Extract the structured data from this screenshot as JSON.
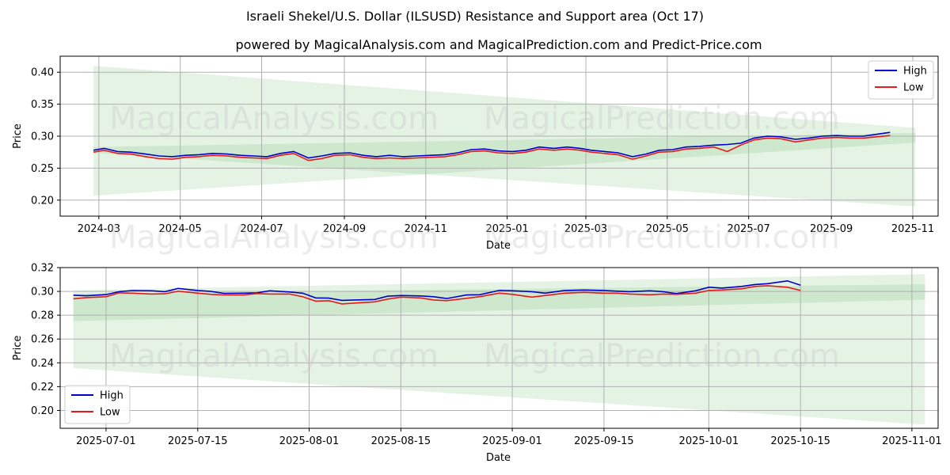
{
  "title": "Israeli Shekel/U.S. Dollar (ILSUSD) Resistance and Support area (Oct 17)",
  "subtitle": "powered by MagicalAnalysis.com and MagicalPrediction.com and Predict-Price.com",
  "watermarks": [
    "MagicalAnalysis.com",
    "MagicalPrediction.com"
  ],
  "colors": {
    "high": "#0000cc",
    "low": "#e41a1c",
    "band": "#2ca02c",
    "grid": "#b0b0b0"
  },
  "chart_data": [
    {
      "type": "line",
      "xlabel": "Date",
      "ylabel": "Price",
      "ylim": [
        0.175,
        0.425
      ],
      "xlim": [
        "2024-02-01",
        "2025-11-20"
      ],
      "yticks": [
        0.2,
        0.25,
        0.3,
        0.35,
        0.4
      ],
      "ytick_labels": [
        "0.20",
        "0.25",
        "0.30",
        "0.35",
        "0.40"
      ],
      "xticks": [
        "2024-03-01",
        "2024-05-01",
        "2024-07-01",
        "2024-09-01",
        "2024-11-01",
        "2025-01-01",
        "2025-03-01",
        "2025-05-01",
        "2025-07-01",
        "2025-09-01",
        "2025-11-01"
      ],
      "xtick_labels": [
        "2024-03",
        "2024-05",
        "2024-07",
        "2024-09",
        "2024-11",
        "2025-01",
        "2025-03",
        "2025-05",
        "2025-07",
        "2025-09",
        "2025-11"
      ],
      "legend": {
        "position": "upper-right",
        "entries": [
          "High",
          "Low"
        ]
      },
      "grid": true,
      "bands": [
        {
          "x": [
            "2024-02-26",
            "2025-11-03"
          ],
          "upper": [
            0.41,
            0.313
          ],
          "lower": [
            0.207,
            0.29
          ]
        },
        {
          "x": [
            "2024-02-26",
            "2025-11-03"
          ],
          "upper": [
            0.283,
            0.305
          ],
          "lower": [
            0.274,
            0.19
          ]
        }
      ],
      "series": [
        {
          "name": "High",
          "x": [
            "2024-02-26",
            "2024-03-05",
            "2024-03-15",
            "2024-03-25",
            "2024-04-05",
            "2024-04-15",
            "2024-04-25",
            "2024-05-05",
            "2024-05-15",
            "2024-05-25",
            "2024-06-05",
            "2024-06-15",
            "2024-06-25",
            "2024-07-05",
            "2024-07-15",
            "2024-07-25",
            "2024-08-05",
            "2024-08-15",
            "2024-08-25",
            "2024-09-05",
            "2024-09-15",
            "2024-09-25",
            "2024-10-05",
            "2024-10-15",
            "2024-10-25",
            "2024-11-05",
            "2024-11-15",
            "2024-11-25",
            "2024-12-05",
            "2024-12-15",
            "2024-12-25",
            "2025-01-05",
            "2025-01-15",
            "2025-01-25",
            "2025-02-05",
            "2025-02-15",
            "2025-02-25",
            "2025-03-05",
            "2025-03-15",
            "2025-03-25",
            "2025-04-05",
            "2025-04-15",
            "2025-04-25",
            "2025-05-05",
            "2025-05-15",
            "2025-05-25",
            "2025-06-05",
            "2025-06-15",
            "2025-06-25",
            "2025-07-05",
            "2025-07-15",
            "2025-07-25",
            "2025-08-05",
            "2025-08-15",
            "2025-08-25",
            "2025-09-05",
            "2025-09-15",
            "2025-09-25",
            "2025-10-05",
            "2025-10-15"
          ],
          "y": [
            0.278,
            0.281,
            0.276,
            0.275,
            0.272,
            0.269,
            0.268,
            0.27,
            0.271,
            0.273,
            0.272,
            0.27,
            0.269,
            0.268,
            0.273,
            0.276,
            0.266,
            0.269,
            0.273,
            0.274,
            0.27,
            0.268,
            0.27,
            0.268,
            0.269,
            0.27,
            0.271,
            0.274,
            0.279,
            0.28,
            0.277,
            0.276,
            0.278,
            0.283,
            0.281,
            0.283,
            0.281,
            0.278,
            0.276,
            0.274,
            0.268,
            0.272,
            0.278,
            0.279,
            0.283,
            0.284,
            0.286,
            0.287,
            0.289,
            0.297,
            0.3,
            0.299,
            0.295,
            0.297,
            0.3,
            0.301,
            0.3,
            0.3,
            0.303,
            0.306
          ]
        },
        {
          "name": "Low",
          "x": [
            "2024-02-26",
            "2024-03-05",
            "2024-03-15",
            "2024-03-25",
            "2024-04-05",
            "2024-04-15",
            "2024-04-25",
            "2024-05-05",
            "2024-05-15",
            "2024-05-25",
            "2024-06-05",
            "2024-06-15",
            "2024-06-25",
            "2024-07-05",
            "2024-07-15",
            "2024-07-25",
            "2024-08-05",
            "2024-08-15",
            "2024-08-25",
            "2024-09-05",
            "2024-09-15",
            "2024-09-25",
            "2024-10-05",
            "2024-10-15",
            "2024-10-25",
            "2024-11-05",
            "2024-11-15",
            "2024-11-25",
            "2024-12-05",
            "2024-12-15",
            "2024-12-25",
            "2025-01-05",
            "2025-01-15",
            "2025-01-25",
            "2025-02-05",
            "2025-02-15",
            "2025-02-25",
            "2025-03-05",
            "2025-03-15",
            "2025-03-25",
            "2025-04-05",
            "2025-04-15",
            "2025-04-25",
            "2025-05-05",
            "2025-05-15",
            "2025-05-25",
            "2025-06-05",
            "2025-06-15",
            "2025-06-25",
            "2025-07-05",
            "2025-07-15",
            "2025-07-25",
            "2025-08-05",
            "2025-08-15",
            "2025-08-25",
            "2025-09-05",
            "2025-09-15",
            "2025-09-25",
            "2025-10-05",
            "2025-10-15"
          ],
          "y": [
            0.275,
            0.278,
            0.273,
            0.272,
            0.268,
            0.265,
            0.264,
            0.267,
            0.268,
            0.27,
            0.269,
            0.267,
            0.266,
            0.265,
            0.27,
            0.273,
            0.262,
            0.265,
            0.27,
            0.271,
            0.267,
            0.265,
            0.266,
            0.265,
            0.266,
            0.267,
            0.268,
            0.271,
            0.276,
            0.277,
            0.274,
            0.273,
            0.275,
            0.28,
            0.278,
            0.28,
            0.278,
            0.275,
            0.273,
            0.271,
            0.264,
            0.269,
            0.275,
            0.276,
            0.28,
            0.281,
            0.283,
            0.276,
            0.286,
            0.294,
            0.297,
            0.296,
            0.291,
            0.294,
            0.297,
            0.298,
            0.297,
            0.297,
            0.299,
            0.301
          ]
        }
      ]
    },
    {
      "type": "line",
      "xlabel": "Date",
      "ylabel": "Price",
      "ylim": [
        0.185,
        0.32
      ],
      "xlim": [
        "2025-06-24",
        "2025-11-05"
      ],
      "yticks": [
        0.2,
        0.22,
        0.24,
        0.26,
        0.28,
        0.3,
        0.32
      ],
      "ytick_labels": [
        "0.20",
        "0.22",
        "0.24",
        "0.26",
        "0.28",
        "0.30",
        "0.32"
      ],
      "xticks": [
        "2025-07-01",
        "2025-07-15",
        "2025-08-01",
        "2025-08-15",
        "2025-09-01",
        "2025-09-15",
        "2025-10-01",
        "2025-10-15",
        "2025-11-01"
      ],
      "xtick_labels": [
        "2025-07-01",
        "2025-07-15",
        "2025-08-01",
        "2025-08-15",
        "2025-09-01",
        "2025-09-15",
        "2025-10-01",
        "2025-10-15",
        "2025-11-01"
      ],
      "legend": {
        "position": "lower-left",
        "entries": [
          "High",
          "Low"
        ]
      },
      "grid": true,
      "bands": [
        {
          "x": [
            "2025-06-26",
            "2025-11-03"
          ],
          "upper": [
            0.301,
            0.3145
          ],
          "lower": [
            0.275,
            0.293
          ]
        },
        {
          "x": [
            "2025-06-26",
            "2025-11-03"
          ],
          "upper": [
            0.298,
            0.306
          ],
          "lower": [
            0.2355,
            0.188
          ]
        }
      ],
      "series": [
        {
          "name": "High",
          "x": [
            "2025-06-26",
            "2025-06-28",
            "2025-07-01",
            "2025-07-03",
            "2025-07-05",
            "2025-07-08",
            "2025-07-10",
            "2025-07-12",
            "2025-07-15",
            "2025-07-17",
            "2025-07-19",
            "2025-07-22",
            "2025-07-24",
            "2025-07-26",
            "2025-07-29",
            "2025-07-31",
            "2025-08-02",
            "2025-08-04",
            "2025-08-06",
            "2025-08-08",
            "2025-08-11",
            "2025-08-13",
            "2025-08-15",
            "2025-08-18",
            "2025-08-20",
            "2025-08-22",
            "2025-08-25",
            "2025-08-27",
            "2025-08-30",
            "2025-09-01",
            "2025-09-04",
            "2025-09-06",
            "2025-09-09",
            "2025-09-12",
            "2025-09-15",
            "2025-09-17",
            "2025-09-19",
            "2025-09-22",
            "2025-09-24",
            "2025-09-26",
            "2025-09-29",
            "2025-10-01",
            "2025-10-03",
            "2025-10-06",
            "2025-10-08",
            "2025-10-10",
            "2025-10-13",
            "2025-10-15"
          ],
          "y": [
            0.2968,
            0.2963,
            0.2973,
            0.2998,
            0.3007,
            0.3005,
            0.2998,
            0.3025,
            0.3008,
            0.3,
            0.2983,
            0.2985,
            0.2988,
            0.3005,
            0.2995,
            0.2985,
            0.2945,
            0.2943,
            0.2925,
            0.2928,
            0.2932,
            0.296,
            0.2965,
            0.2962,
            0.2955,
            0.294,
            0.297,
            0.2972,
            0.3008,
            0.3005,
            0.2998,
            0.2985,
            0.3008,
            0.3012,
            0.3008,
            0.3002,
            0.2998,
            0.3005,
            0.2998,
            0.2982,
            0.3005,
            0.3035,
            0.3028,
            0.3042,
            0.3058,
            0.3065,
            0.3088,
            0.3052
          ]
        },
        {
          "name": "Low",
          "x": [
            "2025-06-26",
            "2025-06-28",
            "2025-07-01",
            "2025-07-03",
            "2025-07-05",
            "2025-07-08",
            "2025-07-10",
            "2025-07-12",
            "2025-07-15",
            "2025-07-17",
            "2025-07-19",
            "2025-07-22",
            "2025-07-24",
            "2025-07-26",
            "2025-07-29",
            "2025-07-31",
            "2025-08-02",
            "2025-08-04",
            "2025-08-06",
            "2025-08-08",
            "2025-08-11",
            "2025-08-13",
            "2025-08-15",
            "2025-08-18",
            "2025-08-20",
            "2025-08-22",
            "2025-08-25",
            "2025-08-27",
            "2025-08-30",
            "2025-09-01",
            "2025-09-04",
            "2025-09-06",
            "2025-09-09",
            "2025-09-12",
            "2025-09-15",
            "2025-09-17",
            "2025-09-19",
            "2025-09-22",
            "2025-09-24",
            "2025-09-26",
            "2025-09-29",
            "2025-10-01",
            "2025-10-03",
            "2025-10-06",
            "2025-10-08",
            "2025-10-10",
            "2025-10-13",
            "2025-10-15"
          ],
          "y": [
            0.2938,
            0.2948,
            0.2955,
            0.2988,
            0.2985,
            0.2978,
            0.298,
            0.3002,
            0.2985,
            0.2975,
            0.297,
            0.297,
            0.2982,
            0.2978,
            0.2978,
            0.2955,
            0.2918,
            0.2922,
            0.2895,
            0.2902,
            0.2912,
            0.2935,
            0.2952,
            0.2945,
            0.2928,
            0.2922,
            0.2942,
            0.2955,
            0.2985,
            0.2975,
            0.2952,
            0.2965,
            0.2985,
            0.2992,
            0.2985,
            0.2985,
            0.2978,
            0.2972,
            0.2978,
            0.2975,
            0.2985,
            0.3008,
            0.3012,
            0.3022,
            0.3042,
            0.3048,
            0.3035,
            0.3008
          ]
        }
      ]
    }
  ]
}
